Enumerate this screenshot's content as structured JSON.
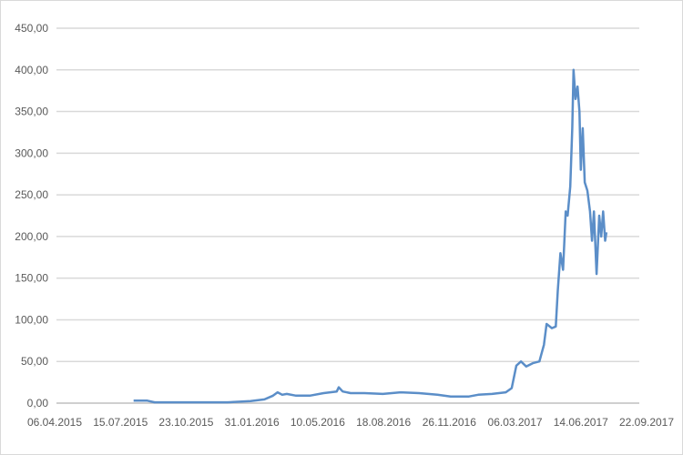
{
  "chart_data": {
    "type": "line",
    "title": "",
    "xlabel": "",
    "ylabel": "",
    "xlim": [
      "2015-04-06",
      "2017-09-22"
    ],
    "ylim": [
      0,
      450
    ],
    "grid": true,
    "legend": "none",
    "line_color": "#5b8ec8",
    "grid_color": "#d9d9d9",
    "x_tick_labels": [
      "06.04.2015",
      "15.07.2015",
      "23.10.2015",
      "31.01.2016",
      "10.05.2016",
      "18.08.2016",
      "26.11.2016",
      "06.03.2017",
      "14.06.2017",
      "22.09.2017"
    ],
    "y_tick_labels": [
      "0,00",
      "50,00",
      "100,00",
      "150,00",
      "200,00",
      "250,00",
      "300,00",
      "350,00",
      "400,00",
      "450,00"
    ],
    "series": [
      {
        "points": [
          [
            "2015-08-04",
            3
          ],
          [
            "2015-08-25",
            3
          ],
          [
            "2015-09-05",
            1
          ],
          [
            "2015-10-17",
            1
          ],
          [
            "2015-11-20",
            1
          ],
          [
            "2015-12-25",
            1
          ],
          [
            "2016-01-29",
            2.5
          ],
          [
            "2016-02-19",
            4.5
          ],
          [
            "2016-03-03",
            9
          ],
          [
            "2016-03-10",
            13
          ],
          [
            "2016-03-17",
            10
          ],
          [
            "2016-03-24",
            11
          ],
          [
            "2016-04-07",
            9
          ],
          [
            "2016-04-28",
            9
          ],
          [
            "2016-05-19",
            12
          ],
          [
            "2016-06-08",
            14
          ],
          [
            "2016-06-11",
            19
          ],
          [
            "2016-06-17",
            14
          ],
          [
            "2016-06-29",
            12
          ],
          [
            "2016-07-20",
            12
          ],
          [
            "2016-08-17",
            11
          ],
          [
            "2016-09-13",
            13
          ],
          [
            "2016-10-11",
            12
          ],
          [
            "2016-11-08",
            10
          ],
          [
            "2016-11-28",
            8
          ],
          [
            "2016-12-26",
            8
          ],
          [
            "2017-01-09",
            10
          ],
          [
            "2017-01-30",
            11
          ],
          [
            "2017-02-20",
            13
          ],
          [
            "2017-03-01",
            18
          ],
          [
            "2017-03-08",
            45
          ],
          [
            "2017-03-15",
            50
          ],
          [
            "2017-03-23",
            44
          ],
          [
            "2017-04-02",
            48
          ],
          [
            "2017-04-12",
            50
          ],
          [
            "2017-04-19",
            70
          ],
          [
            "2017-04-23",
            95
          ],
          [
            "2017-05-01",
            90
          ],
          [
            "2017-05-07",
            92
          ],
          [
            "2017-05-10",
            135
          ],
          [
            "2017-05-14",
            180
          ],
          [
            "2017-05-18",
            160
          ],
          [
            "2017-05-22",
            230
          ],
          [
            "2017-05-25",
            225
          ],
          [
            "2017-05-29",
            260
          ],
          [
            "2017-06-01",
            330
          ],
          [
            "2017-06-03",
            400
          ],
          [
            "2017-06-06",
            365
          ],
          [
            "2017-06-09",
            380
          ],
          [
            "2017-06-12",
            350
          ],
          [
            "2017-06-14",
            280
          ],
          [
            "2017-06-17",
            330
          ],
          [
            "2017-06-20",
            265
          ],
          [
            "2017-06-24",
            255
          ],
          [
            "2017-06-28",
            230
          ],
          [
            "2017-07-01",
            195
          ],
          [
            "2017-07-04",
            230
          ],
          [
            "2017-07-08",
            155
          ],
          [
            "2017-07-12",
            225
          ],
          [
            "2017-07-15",
            200
          ],
          [
            "2017-07-18",
            230
          ],
          [
            "2017-07-21",
            195
          ],
          [
            "2017-07-23",
            205
          ]
        ]
      }
    ]
  }
}
